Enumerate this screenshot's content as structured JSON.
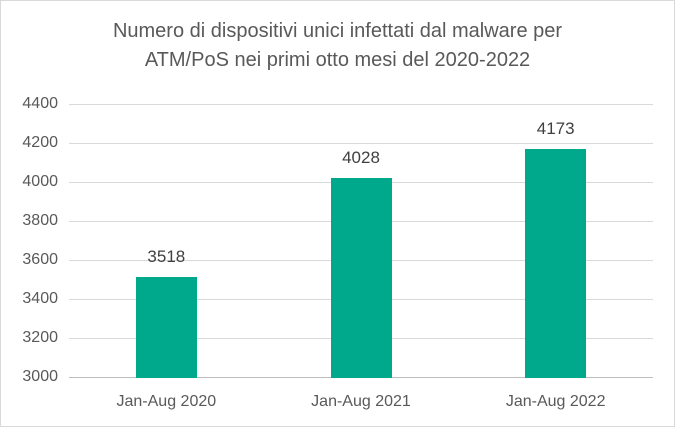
{
  "title": {
    "line1": "Numero di dispositivi unici infettati dal malware per",
    "line2": "ATM/PoS nei primi otto mesi del 2020-2022"
  },
  "chart_data": {
    "type": "bar",
    "title": "Numero di dispositivi unici infettati dal malware per ATM/PoS nei primi otto mesi del 2020-2022",
    "categories": [
      "Jan-Aug 2020",
      "Jan-Aug 2021",
      "Jan-Aug 2022"
    ],
    "values": [
      3518,
      4028,
      4173
    ],
    "data_labels": [
      "3518",
      "4028",
      "4173"
    ],
    "xlabel": "",
    "ylabel": "",
    "ylim": [
      3000,
      4400
    ],
    "ytick_step": 200,
    "ytick_labels": [
      "3000",
      "3200",
      "3400",
      "3600",
      "3800",
      "4000",
      "4200",
      "4400"
    ],
    "grid": true,
    "legend": false,
    "data_labels_visible": true
  },
  "colors": {
    "bar": "#00A88C",
    "title_text": "#595959",
    "axis_text": "#595959",
    "data_label_text": "#404040",
    "gridline": "#D9D9D9",
    "axis_line": "#BFBFBF",
    "border": "#D9D9D9",
    "background": "#FFFFFF"
  }
}
